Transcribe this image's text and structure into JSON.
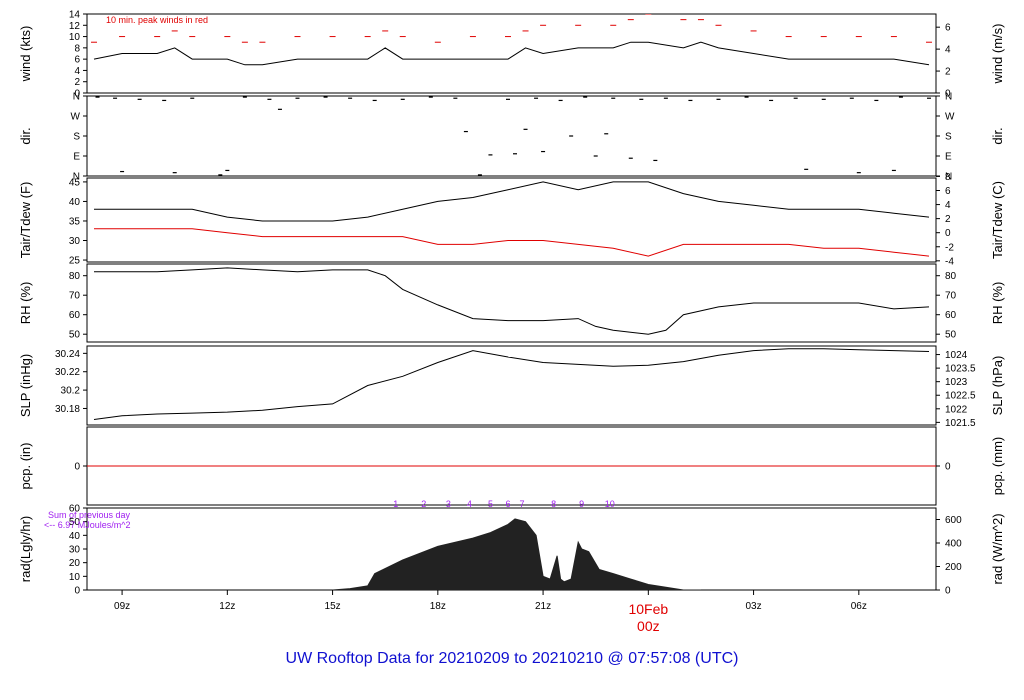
{
  "colors": {
    "black": "#000000",
    "red": "#e00000",
    "blue": "#1010d0",
    "purple": "#a020f0"
  },
  "footer": {
    "title": "UW Rooftop Data for 20210209  to  20210210 @ 07:57:08  (UTC)"
  },
  "chart_data": {
    "type": "line",
    "x_hours_range": [
      8,
      32.2
    ],
    "x_ticks": [
      {
        "hour": 9,
        "label": "09z"
      },
      {
        "hour": 12,
        "label": "12z"
      },
      {
        "hour": 15,
        "label": "15z"
      },
      {
        "hour": 18,
        "label": "18z"
      },
      {
        "hour": 21,
        "label": "21z"
      },
      {
        "hour": 27,
        "label": "03z"
      },
      {
        "hour": 30,
        "label": "06z"
      }
    ],
    "date_marker": {
      "hour": 24,
      "date_label": "10Feb",
      "time_label": "00z"
    },
    "panels": [
      {
        "id": "wind",
        "ylabel": "wind (kts)",
        "ylabel_right": "wind (m/s)",
        "ylim": [
          0,
          14
        ],
        "yticks": [
          0,
          2,
          4,
          6,
          8,
          10,
          12,
          14
        ],
        "yticks_right": [
          0,
          2,
          4,
          6
        ],
        "annotation": "10 min. peak winds in red",
        "series": [
          {
            "color": "#000000",
            "kind": "line",
            "x": [
              8.2,
              9,
              10,
              10.5,
              11,
              12,
              12.5,
              13,
              14,
              15,
              16,
              16.5,
              17,
              18,
              19,
              20,
              20.5,
              21,
              22,
              23,
              23.5,
              24,
              25,
              25.5,
              26,
              27,
              28,
              29,
              30,
              31,
              32
            ],
            "values": [
              6,
              7,
              7,
              8,
              6,
              6,
              5,
              5,
              6,
              6,
              6,
              8,
              6,
              6,
              6,
              6,
              8,
              7,
              8,
              8,
              9,
              9,
              8,
              9,
              8,
              7,
              6,
              6,
              6,
              6,
              5
            ]
          },
          {
            "color": "#e00000",
            "kind": "dash",
            "x": [
              8.2,
              9,
              10,
              10.5,
              11,
              12,
              12.5,
              13,
              14,
              15,
              16,
              16.5,
              17,
              18,
              19,
              20,
              20.5,
              21,
              22,
              23,
              23.5,
              24,
              25,
              25.5,
              26,
              27,
              28,
              29,
              30,
              31,
              32
            ],
            "values": [
              9,
              10,
              10,
              11,
              10,
              10,
              9,
              9,
              10,
              10,
              10,
              11,
              10,
              9,
              10,
              10,
              11,
              12,
              12,
              12,
              13,
              14,
              13,
              13,
              12,
              11,
              10,
              10,
              10,
              10,
              9
            ]
          }
        ]
      },
      {
        "id": "dir",
        "ylabel": "dir.",
        "ylabel_right": "dir.",
        "ylim": [
          0,
          360
        ],
        "ytick_values": [
          0,
          90,
          180,
          270,
          360
        ],
        "yticks": [
          "N",
          "E",
          "S",
          "W",
          "N"
        ],
        "yticks_right": [
          "N",
          "E",
          "S",
          "W",
          "N"
        ],
        "series": [
          {
            "color": "#000000",
            "kind": "scatter",
            "x": [
              8.3,
              8.8,
              9.5,
              10.2,
              11,
              11.8,
              12.5,
              13.2,
              14,
              14.8,
              15.5,
              16.2,
              17,
              17.8,
              18.5,
              19.2,
              20,
              20.8,
              21.5,
              22.2,
              23,
              23.8,
              24.5,
              25.2,
              26,
              26.8,
              27.5,
              28.2,
              29,
              29.8,
              30.5,
              31.2,
              32,
              9,
              10.5,
              12,
              19.5,
              20.2,
              21,
              22.5,
              23.5,
              24.2,
              28.5,
              30,
              31,
              13.5,
              18.8,
              20.5,
              21.8,
              22.8
            ],
            "values": [
              355,
              350,
              345,
              340,
              350,
              5,
              355,
              345,
              350,
              355,
              350,
              340,
              345,
              355,
              350,
              5,
              345,
              350,
              340,
              355,
              350,
              345,
              350,
              340,
              345,
              355,
              340,
              350,
              345,
              350,
              340,
              355,
              350,
              20,
              15,
              25,
              95,
              100,
              110,
              90,
              80,
              70,
              30,
              15,
              25,
              300,
              200,
              210,
              180,
              190
            ]
          }
        ]
      },
      {
        "id": "temp",
        "ylabel": "Tair/Tdew (F)",
        "ylabel_right": "Tair/Tdew (C)",
        "ylim": [
          24.5,
          46
        ],
        "yticks": [
          25,
          30,
          35,
          40,
          45
        ],
        "yticks_right": [
          -4,
          -2,
          0,
          2,
          4,
          6,
          8
        ],
        "series": [
          {
            "name": "Tair",
            "color": "#000000",
            "kind": "line",
            "x": [
              8.2,
              9,
              10,
              11,
              12,
              13,
              14,
              15,
              16,
              17,
              18,
              19,
              20,
              21,
              22,
              23,
              24,
              25,
              26,
              27,
              28,
              29,
              30,
              31,
              32
            ],
            "values": [
              38,
              38,
              38,
              38,
              36,
              35,
              35,
              35,
              36,
              38,
              40,
              41,
              43,
              45,
              43,
              45,
              45,
              42,
              40,
              39,
              38,
              38,
              38,
              37,
              36
            ]
          },
          {
            "name": "Tdew",
            "color": "#e00000",
            "kind": "line",
            "x": [
              8.2,
              9,
              10,
              11,
              12,
              13,
              14,
              15,
              16,
              17,
              18,
              19,
              20,
              21,
              22,
              23,
              24,
              25,
              26,
              27,
              28,
              29,
              30,
              31,
              32
            ],
            "values": [
              33,
              33,
              33,
              33,
              32,
              31,
              31,
              31,
              31,
              31,
              29,
              29,
              30,
              30,
              29,
              28,
              26,
              29,
              29,
              29,
              29,
              28,
              28,
              27,
              26
            ]
          }
        ]
      },
      {
        "id": "rh",
        "ylabel": "RH (%)",
        "ylabel_right": "RH (%)",
        "ylim": [
          46,
          86
        ],
        "yticks": [
          50,
          60,
          70,
          80
        ],
        "yticks_right": [
          50,
          60,
          70,
          80
        ],
        "series": [
          {
            "color": "#000000",
            "kind": "line",
            "x": [
              8.2,
              9,
              10,
              11,
              12,
              13,
              14,
              15,
              16,
              16.5,
              17,
              18,
              19,
              20,
              21,
              22,
              22.5,
              23,
              24,
              24.5,
              25,
              26,
              27,
              28,
              29,
              30,
              31,
              32
            ],
            "values": [
              82,
              82,
              82,
              83,
              84,
              83,
              82,
              83,
              83,
              80,
              73,
              65,
              58,
              57,
              57,
              58,
              54,
              52,
              50,
              52,
              60,
              64,
              66,
              66,
              66,
              66,
              63,
              64
            ]
          }
        ]
      },
      {
        "id": "slp",
        "ylabel": "SLP (inHg)",
        "ylabel_right": "SLP (hPa)",
        "ylim": [
          30.162,
          30.248
        ],
        "yticks": [
          30.18,
          30.2,
          30.22,
          30.24
        ],
        "yticks_right": [
          1021.5,
          1022,
          1022.5,
          1023,
          1023.5,
          1024
        ],
        "series": [
          {
            "color": "#000000",
            "kind": "line",
            "x": [
              8.2,
              9,
              10,
              11,
              12,
              13,
              14,
              15,
              16,
              17,
              18,
              19,
              20,
              21,
              22,
              23,
              24,
              25,
              26,
              27,
              28,
              29,
              30,
              31,
              32
            ],
            "values": [
              30.168,
              30.172,
              30.174,
              30.175,
              30.176,
              30.178,
              30.182,
              30.185,
              30.205,
              30.215,
              30.23,
              30.243,
              30.236,
              30.23,
              30.228,
              30.226,
              30.227,
              30.231,
              30.238,
              30.243,
              30.245,
              30.245,
              30.244,
              30.243,
              30.242
            ]
          }
        ]
      },
      {
        "id": "pcp",
        "ylabel": "pcp. (in)",
        "ylabel_right": "pcp. (mm)",
        "ylim": [
          -0.1,
          0.1
        ],
        "yticks": [
          0
        ],
        "yticks_right": [
          0
        ],
        "series": [
          {
            "color": "#e00000",
            "kind": "line",
            "x": [
              8,
              32.2
            ],
            "values": [
              0,
              0
            ]
          }
        ]
      },
      {
        "id": "rad",
        "ylabel": "rad(Lgly/hr)",
        "ylabel_right": "rad (W/m^2)",
        "ylim": [
          0,
          60
        ],
        "yticks": [
          0,
          10,
          20,
          30,
          40,
          50,
          60
        ],
        "yticks_right": [
          0,
          200,
          400,
          600
        ],
        "annotation": "Sum of previous day",
        "annotation2": "<-- 6.97 MJoules/m^2",
        "hour_marks": [
          {
            "hour": 16.8,
            "label": "1"
          },
          {
            "hour": 17.6,
            "label": "2"
          },
          {
            "hour": 18.3,
            "label": "3"
          },
          {
            "hour": 18.9,
            "label": "4"
          },
          {
            "hour": 19.5,
            "label": "5"
          },
          {
            "hour": 20.0,
            "label": "6"
          },
          {
            "hour": 20.4,
            "label": "7"
          },
          {
            "hour": 21.3,
            "label": "8"
          },
          {
            "hour": 22.1,
            "label": "9"
          },
          {
            "hour": 22.9,
            "label": "10"
          }
        ],
        "series": [
          {
            "color": "#222222",
            "kind": "area",
            "x": [
              15,
              15.5,
              16,
              16.2,
              17,
              18,
              19,
              19.5,
              20,
              20.2,
              20.5,
              20.8,
              21,
              21.2,
              21.4,
              21.5,
              21.6,
              21.8,
              22,
              22.1,
              22.3,
              22.6,
              23,
              23.5,
              24,
              24.5,
              25,
              25.5
            ],
            "values": [
              0,
              1,
              3,
              12,
              22,
              32,
              38,
              42,
              48,
              52,
              50,
              40,
              10,
              8,
              25,
              8,
              6,
              8,
              35,
              30,
              28,
              15,
              12,
              8,
              4,
              2,
              0,
              0
            ]
          }
        ]
      }
    ]
  }
}
